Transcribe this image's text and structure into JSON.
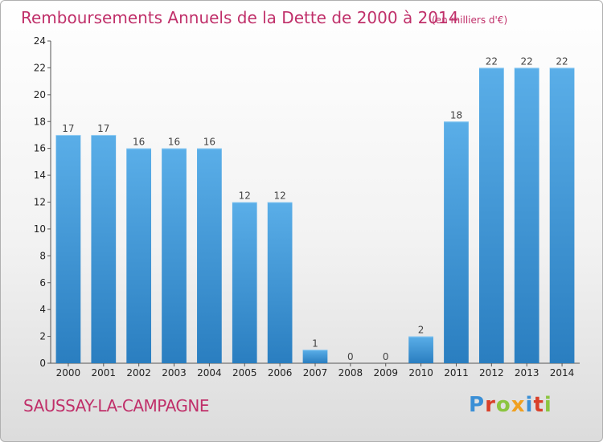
{
  "header": {
    "title": "Remboursements Annuels de la Dette de 2000 à 2014",
    "unit": "(en milliers d'€)"
  },
  "footer": {
    "commune": "SAUSSAY-LA-CAMPAGNE",
    "logo": "Proxiti"
  },
  "colors": {
    "title": "#c0306a",
    "bar_light": "#5aaee8",
    "bar_dark": "#2a7ec0",
    "logo_letters": [
      "#3a8fd6",
      "#d9402a",
      "#8bc53f",
      "#f0a020",
      "#3a8fd6",
      "#d9402a",
      "#8bc53f"
    ]
  },
  "chart_data": {
    "type": "bar",
    "title": "Remboursements Annuels de la Dette de 2000 à 2014",
    "subtitle": "(en milliers d'€)",
    "xlabel": "",
    "ylabel": "",
    "categories": [
      "2000",
      "2001",
      "2002",
      "2003",
      "2004",
      "2005",
      "2006",
      "2007",
      "2008",
      "2009",
      "2010",
      "2011",
      "2012",
      "2013",
      "2014"
    ],
    "values": [
      17,
      17,
      16,
      16,
      16,
      12,
      12,
      1,
      0,
      0,
      2,
      18,
      22,
      22,
      22
    ],
    "ylim": [
      0,
      24
    ],
    "yticks": [
      0,
      2,
      4,
      6,
      8,
      10,
      12,
      14,
      16,
      18,
      20,
      22,
      24
    ],
    "grid": false,
    "legend": "none"
  }
}
